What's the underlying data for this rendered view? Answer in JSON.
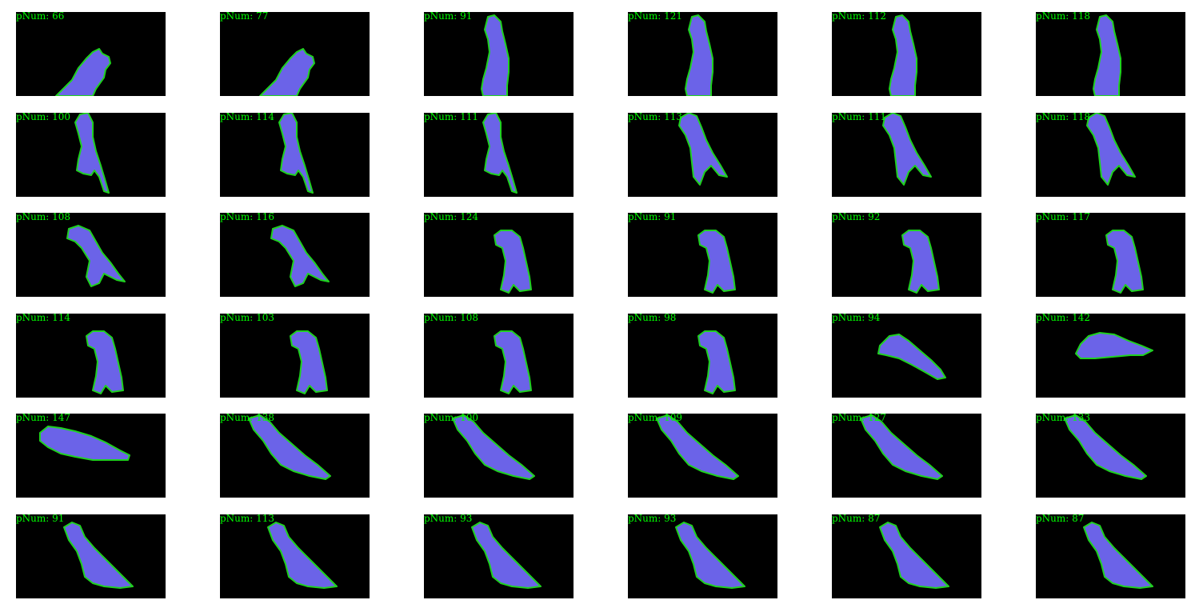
{
  "label_prefix": "pNum: ",
  "colors": {
    "background": "#000000",
    "fill": "#6b63e8",
    "contour": "#1fd11f",
    "label": "#00ff00"
  },
  "frames": [
    {
      "pnum": 66,
      "pose": "tilt-right-bottom"
    },
    {
      "pnum": 77,
      "pose": "tilt-right-bottom"
    },
    {
      "pnum": 91,
      "pose": "upright"
    },
    {
      "pnum": 121,
      "pose": "upright"
    },
    {
      "pnum": 112,
      "pose": "upright"
    },
    {
      "pnum": 118,
      "pose": "upright"
    },
    {
      "pnum": 100,
      "pose": "upright-short"
    },
    {
      "pnum": 114,
      "pose": "upright-short"
    },
    {
      "pnum": 111,
      "pose": "upright-short"
    },
    {
      "pnum": 113,
      "pose": "lean"
    },
    {
      "pnum": 111,
      "pose": "lean"
    },
    {
      "pnum": 118,
      "pose": "lean"
    },
    {
      "pnum": 108,
      "pose": "hunch"
    },
    {
      "pnum": 116,
      "pose": "hunch"
    },
    {
      "pnum": 124,
      "pose": "hunch-right"
    },
    {
      "pnum": 91,
      "pose": "hunch-right"
    },
    {
      "pnum": 92,
      "pose": "hunch-right"
    },
    {
      "pnum": 117,
      "pose": "hunch-right"
    },
    {
      "pnum": 114,
      "pose": "hunch-right"
    },
    {
      "pnum": 103,
      "pose": "hunch-right"
    },
    {
      "pnum": 108,
      "pose": "hunch-right"
    },
    {
      "pnum": 98,
      "pose": "hunch-right"
    },
    {
      "pnum": 94,
      "pose": "diag"
    },
    {
      "pnum": 142,
      "pose": "flat"
    },
    {
      "pnum": 147,
      "pose": "flat-left"
    },
    {
      "pnum": 138,
      "pose": "diag-long"
    },
    {
      "pnum": 100,
      "pose": "diag-long"
    },
    {
      "pnum": 109,
      "pose": "diag-long"
    },
    {
      "pnum": 127,
      "pose": "diag-long"
    },
    {
      "pnum": 133,
      "pose": "diag-long"
    },
    {
      "pnum": 91,
      "pose": "diag-down"
    },
    {
      "pnum": 113,
      "pose": "diag-down"
    },
    {
      "pnum": 93,
      "pose": "diag-down"
    },
    {
      "pnum": 93,
      "pose": "diag-down"
    },
    {
      "pnum": 87,
      "pose": "diag-down"
    },
    {
      "pnum": 87,
      "pose": "diag-down"
    }
  ]
}
